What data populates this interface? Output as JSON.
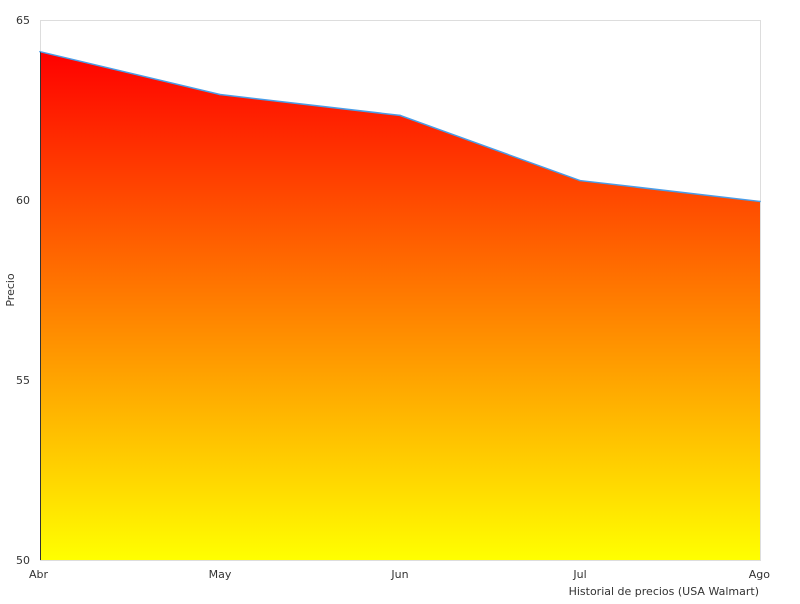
{
  "chart_data": {
    "type": "area",
    "title": "",
    "xlabel": "Historial de precios (USA Walmart)",
    "ylabel": "Precio",
    "categories": [
      "Abr",
      "May",
      "Jun",
      "Jul",
      "Ago"
    ],
    "series": [
      {
        "values": [
          64.12,
          62.93,
          62.35,
          60.54,
          59.96
        ]
      }
    ],
    "ylim": [
      50,
      65
    ],
    "yticks": [
      50,
      55,
      60,
      65
    ],
    "grid": false,
    "legend": "none",
    "colors": {
      "line": "#4a9de8",
      "fill_top": "#ff0000",
      "fill_bottom": "#ffff00",
      "border": "#dddddd"
    }
  }
}
